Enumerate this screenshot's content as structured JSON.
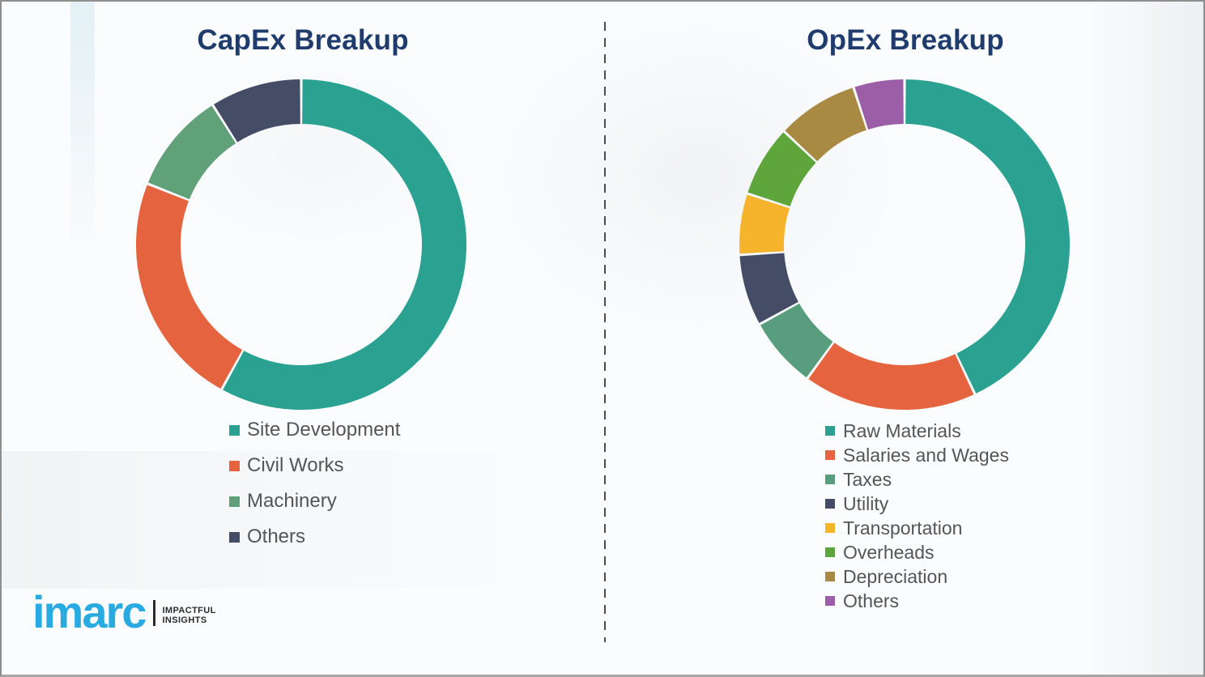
{
  "colors": {
    "title_navy": "#1f3c6d",
    "legend_text_gray": "#555555",
    "divider_gray": "#4c4c4c",
    "logo_blue": "#29abe2",
    "logo_dark": "#2b2b2b"
  },
  "chart_data": [
    {
      "type": "pie",
      "subtype": "donut",
      "title": "CapEx Breakup",
      "labels": [
        "Site Development",
        "Civil Works",
        "Machinery",
        "Others"
      ],
      "values": [
        58,
        23,
        10,
        9
      ],
      "unit": "percent-estimated-from-arc-angles",
      "colors": [
        "#2aa191",
        "#e5643f",
        "#61a17a",
        "#454d66"
      ],
      "start_angle_deg": 0,
      "direction": "clockwise",
      "legend_position": "below-left",
      "data_labels_shown": false
    },
    {
      "type": "pie",
      "subtype": "donut",
      "title": "OpEx Breakup",
      "labels": [
        "Raw Materials",
        "Salaries and Wages",
        "Taxes",
        "Utility",
        "Transportation",
        "Overheads",
        "Depreciation",
        "Others"
      ],
      "values": [
        43,
        17,
        7,
        7,
        6,
        7,
        8,
        5
      ],
      "unit": "percent-estimated-from-arc-angles",
      "colors": [
        "#2aa191",
        "#e5643f",
        "#589d7d",
        "#454d66",
        "#f6b42c",
        "#5ea53c",
        "#a98a43",
        "#9c5fa7"
      ],
      "start_angle_deg": 0,
      "direction": "clockwise",
      "legend_position": "below-left",
      "data_labels_shown": false
    }
  ],
  "logo": {
    "brand": "imarc",
    "tagline_line1": "IMPACTFUL",
    "tagline_line2": "INSIGHTS"
  }
}
